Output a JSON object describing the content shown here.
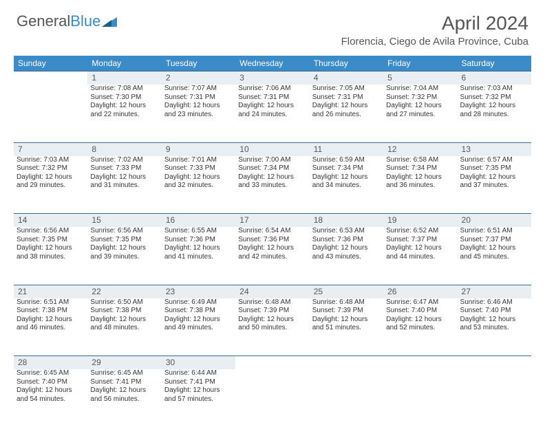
{
  "brand": {
    "part1": "General",
    "part2": "Blue"
  },
  "title": "April 2024",
  "location": "Florencia, Ciego de Avila Province, Cuba",
  "colors": {
    "header_bg": "#3b8bc9",
    "header_text": "#ffffff",
    "daynum_bg": "#e9eef2",
    "border": "#3b6b8c",
    "text": "#333333",
    "muted": "#555555",
    "page_bg": "#ffffff"
  },
  "weekdays": [
    "Sunday",
    "Monday",
    "Tuesday",
    "Wednesday",
    "Thursday",
    "Friday",
    "Saturday"
  ],
  "weeks": [
    {
      "nums": [
        "",
        "1",
        "2",
        "3",
        "4",
        "5",
        "6"
      ],
      "cells": [
        null,
        {
          "sr": "Sunrise: 7:08 AM",
          "ss": "Sunset: 7:30 PM",
          "d1": "Daylight: 12 hours",
          "d2": "and 22 minutes."
        },
        {
          "sr": "Sunrise: 7:07 AM",
          "ss": "Sunset: 7:31 PM",
          "d1": "Daylight: 12 hours",
          "d2": "and 23 minutes."
        },
        {
          "sr": "Sunrise: 7:06 AM",
          "ss": "Sunset: 7:31 PM",
          "d1": "Daylight: 12 hours",
          "d2": "and 24 minutes."
        },
        {
          "sr": "Sunrise: 7:05 AM",
          "ss": "Sunset: 7:31 PM",
          "d1": "Daylight: 12 hours",
          "d2": "and 26 minutes."
        },
        {
          "sr": "Sunrise: 7:04 AM",
          "ss": "Sunset: 7:32 PM",
          "d1": "Daylight: 12 hours",
          "d2": "and 27 minutes."
        },
        {
          "sr": "Sunrise: 7:03 AM",
          "ss": "Sunset: 7:32 PM",
          "d1": "Daylight: 12 hours",
          "d2": "and 28 minutes."
        }
      ]
    },
    {
      "nums": [
        "7",
        "8",
        "9",
        "10",
        "11",
        "12",
        "13"
      ],
      "cells": [
        {
          "sr": "Sunrise: 7:03 AM",
          "ss": "Sunset: 7:32 PM",
          "d1": "Daylight: 12 hours",
          "d2": "and 29 minutes."
        },
        {
          "sr": "Sunrise: 7:02 AM",
          "ss": "Sunset: 7:33 PM",
          "d1": "Daylight: 12 hours",
          "d2": "and 31 minutes."
        },
        {
          "sr": "Sunrise: 7:01 AM",
          "ss": "Sunset: 7:33 PM",
          "d1": "Daylight: 12 hours",
          "d2": "and 32 minutes."
        },
        {
          "sr": "Sunrise: 7:00 AM",
          "ss": "Sunset: 7:34 PM",
          "d1": "Daylight: 12 hours",
          "d2": "and 33 minutes."
        },
        {
          "sr": "Sunrise: 6:59 AM",
          "ss": "Sunset: 7:34 PM",
          "d1": "Daylight: 12 hours",
          "d2": "and 34 minutes."
        },
        {
          "sr": "Sunrise: 6:58 AM",
          "ss": "Sunset: 7:34 PM",
          "d1": "Daylight: 12 hours",
          "d2": "and 36 minutes."
        },
        {
          "sr": "Sunrise: 6:57 AM",
          "ss": "Sunset: 7:35 PM",
          "d1": "Daylight: 12 hours",
          "d2": "and 37 minutes."
        }
      ]
    },
    {
      "nums": [
        "14",
        "15",
        "16",
        "17",
        "18",
        "19",
        "20"
      ],
      "cells": [
        {
          "sr": "Sunrise: 6:56 AM",
          "ss": "Sunset: 7:35 PM",
          "d1": "Daylight: 12 hours",
          "d2": "and 38 minutes."
        },
        {
          "sr": "Sunrise: 6:56 AM",
          "ss": "Sunset: 7:35 PM",
          "d1": "Daylight: 12 hours",
          "d2": "and 39 minutes."
        },
        {
          "sr": "Sunrise: 6:55 AM",
          "ss": "Sunset: 7:36 PM",
          "d1": "Daylight: 12 hours",
          "d2": "and 41 minutes."
        },
        {
          "sr": "Sunrise: 6:54 AM",
          "ss": "Sunset: 7:36 PM",
          "d1": "Daylight: 12 hours",
          "d2": "and 42 minutes."
        },
        {
          "sr": "Sunrise: 6:53 AM",
          "ss": "Sunset: 7:36 PM",
          "d1": "Daylight: 12 hours",
          "d2": "and 43 minutes."
        },
        {
          "sr": "Sunrise: 6:52 AM",
          "ss": "Sunset: 7:37 PM",
          "d1": "Daylight: 12 hours",
          "d2": "and 44 minutes."
        },
        {
          "sr": "Sunrise: 6:51 AM",
          "ss": "Sunset: 7:37 PM",
          "d1": "Daylight: 12 hours",
          "d2": "and 45 minutes."
        }
      ]
    },
    {
      "nums": [
        "21",
        "22",
        "23",
        "24",
        "25",
        "26",
        "27"
      ],
      "cells": [
        {
          "sr": "Sunrise: 6:51 AM",
          "ss": "Sunset: 7:38 PM",
          "d1": "Daylight: 12 hours",
          "d2": "and 46 minutes."
        },
        {
          "sr": "Sunrise: 6:50 AM",
          "ss": "Sunset: 7:38 PM",
          "d1": "Daylight: 12 hours",
          "d2": "and 48 minutes."
        },
        {
          "sr": "Sunrise: 6:49 AM",
          "ss": "Sunset: 7:38 PM",
          "d1": "Daylight: 12 hours",
          "d2": "and 49 minutes."
        },
        {
          "sr": "Sunrise: 6:48 AM",
          "ss": "Sunset: 7:39 PM",
          "d1": "Daylight: 12 hours",
          "d2": "and 50 minutes."
        },
        {
          "sr": "Sunrise: 6:48 AM",
          "ss": "Sunset: 7:39 PM",
          "d1": "Daylight: 12 hours",
          "d2": "and 51 minutes."
        },
        {
          "sr": "Sunrise: 6:47 AM",
          "ss": "Sunset: 7:40 PM",
          "d1": "Daylight: 12 hours",
          "d2": "and 52 minutes."
        },
        {
          "sr": "Sunrise: 6:46 AM",
          "ss": "Sunset: 7:40 PM",
          "d1": "Daylight: 12 hours",
          "d2": "and 53 minutes."
        }
      ]
    },
    {
      "nums": [
        "28",
        "29",
        "30",
        "",
        "",
        "",
        ""
      ],
      "cells": [
        {
          "sr": "Sunrise: 6:45 AM",
          "ss": "Sunset: 7:40 PM",
          "d1": "Daylight: 12 hours",
          "d2": "and 54 minutes."
        },
        {
          "sr": "Sunrise: 6:45 AM",
          "ss": "Sunset: 7:41 PM",
          "d1": "Daylight: 12 hours",
          "d2": "and 56 minutes."
        },
        {
          "sr": "Sunrise: 6:44 AM",
          "ss": "Sunset: 7:41 PM",
          "d1": "Daylight: 12 hours",
          "d2": "and 57 minutes."
        },
        null,
        null,
        null,
        null
      ]
    }
  ]
}
